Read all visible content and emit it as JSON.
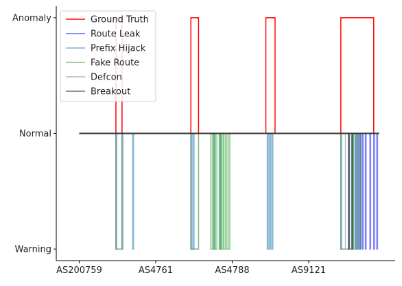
{
  "chart_data": {
    "type": "line",
    "title": "",
    "xlabel": "",
    "ylabel": "",
    "x_ticks": [
      {
        "value": 0,
        "label": "AS200759"
      },
      {
        "value": 100,
        "label": "AS4761"
      },
      {
        "value": 200,
        "label": "AS4788"
      },
      {
        "value": 300,
        "label": "AS9121"
      }
    ],
    "y_ticks": [
      {
        "value": -1,
        "label": "Warning"
      },
      {
        "value": 0,
        "label": "Normal"
      },
      {
        "value": 1,
        "label": "Anomaly"
      }
    ],
    "xlim": [
      -30,
      413
    ],
    "ylim": [
      -1.1,
      1.1
    ],
    "legend_position": "top-left",
    "series": [
      {
        "name": "Ground Truth",
        "color": "#ff0000",
        "width": 1.5,
        "opacity": 1,
        "steps": [
          [
            0,
            0
          ],
          [
            48,
            1
          ],
          [
            56,
            0
          ],
          [
            146,
            1
          ],
          [
            156,
            0
          ],
          [
            244,
            1
          ],
          [
            256,
            0
          ],
          [
            342,
            1
          ],
          [
            385,
            0
          ],
          [
            392,
            0
          ]
        ]
      },
      {
        "name": "Route Leak",
        "color": "#0000ff",
        "width": 1.5,
        "opacity": 0.5,
        "pulses": [
          [
            361,
            362
          ],
          [
            364,
            365
          ],
          [
            367,
            368
          ],
          [
            370,
            371
          ],
          [
            374,
            375
          ],
          [
            380,
            381
          ],
          [
            385,
            386
          ],
          [
            389,
            390
          ]
        ]
      },
      {
        "name": "Prefix Hijack",
        "color": "#1f77b4",
        "width": 2,
        "opacity": 0.5,
        "pulses": [
          [
            48,
            49
          ],
          [
            56,
            57
          ],
          [
            70,
            71
          ],
          [
            146,
            147
          ],
          [
            149,
            150
          ],
          [
            176,
            177
          ],
          [
            184,
            185
          ],
          [
            246,
            247
          ],
          [
            249,
            250
          ],
          [
            252,
            253
          ],
          [
            342,
            343
          ],
          [
            352,
            353
          ],
          [
            357,
            358
          ]
        ]
      },
      {
        "name": "Fake Route",
        "color": "#2ca02c",
        "width": 1.5,
        "opacity": 0.55,
        "pulses": [
          [
            48,
            56
          ],
          [
            146,
            156
          ],
          [
            172,
            174
          ],
          [
            174,
            176
          ],
          [
            176,
            178
          ],
          [
            178,
            180
          ],
          [
            183,
            185
          ],
          [
            186,
            188
          ],
          [
            189,
            191
          ],
          [
            191,
            193
          ],
          [
            193,
            195
          ],
          [
            195,
            197
          ],
          [
            342,
            357
          ],
          [
            358,
            359
          ],
          [
            362,
            363
          ],
          [
            366,
            368
          ]
        ]
      },
      {
        "name": "Defcon",
        "color": "#999999",
        "width": 1.5,
        "opacity": 0.6,
        "pulses": [
          [
            48,
            56
          ],
          [
            146,
            156
          ],
          [
            342,
            348
          ],
          [
            348,
            362
          ]
        ]
      },
      {
        "name": "Breakout",
        "color": "#222222",
        "width": 1.5,
        "opacity": 0.55,
        "pulses": [
          [
            352,
            353
          ],
          [
            356,
            357
          ]
        ]
      }
    ],
    "normal_line": {
      "x_start": 0,
      "x_end": 392,
      "color": "#333333"
    }
  }
}
